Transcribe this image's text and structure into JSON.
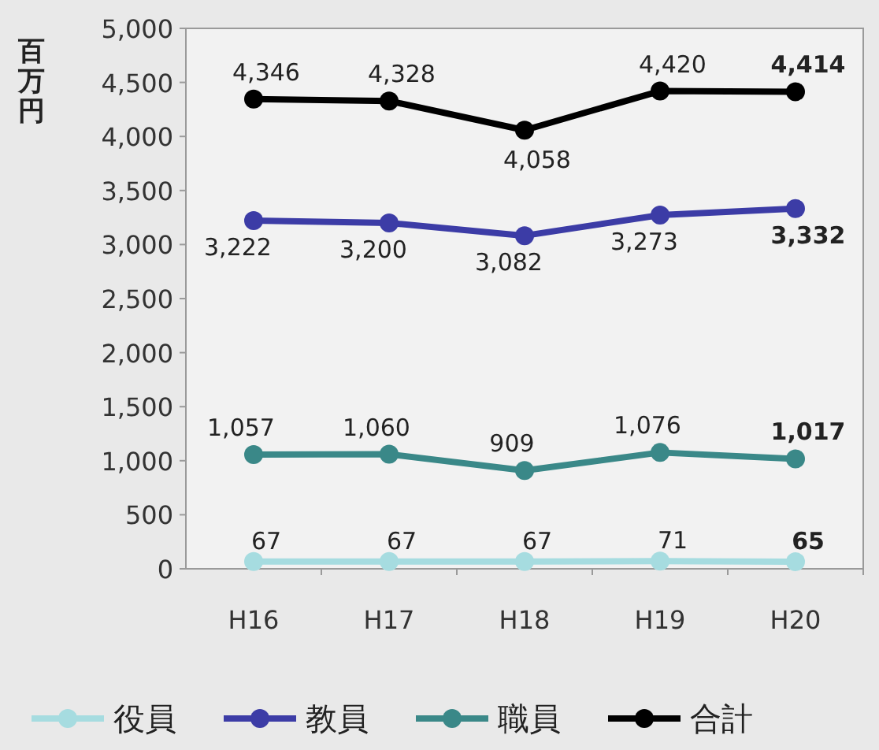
{
  "chart_data": {
    "type": "line",
    "ylabel": "百万円",
    "categories": [
      "H16",
      "H17",
      "H18",
      "H19",
      "H20"
    ],
    "ylim": [
      0,
      5000
    ],
    "yticks": [
      {
        "value": 0,
        "label": "0"
      },
      {
        "value": 500,
        "label": "500"
      },
      {
        "value": 1000,
        "label": "1,000"
      },
      {
        "value": 1500,
        "label": "1,500"
      },
      {
        "value": 2000,
        "label": "2,000"
      },
      {
        "value": 2500,
        "label": "2,500"
      },
      {
        "value": 3000,
        "label": "3,000"
      },
      {
        "value": 3500,
        "label": "3,500"
      },
      {
        "value": 4000,
        "label": "4,000"
      },
      {
        "value": 4500,
        "label": "4,500"
      },
      {
        "value": 5000,
        "label": "5,000"
      }
    ],
    "series": [
      {
        "name": "役員",
        "color": "#a6dce0",
        "values": [
          67,
          67,
          67,
          71,
          65
        ],
        "value_labels": [
          "67",
          "67",
          "67",
          "71",
          "**65**"
        ]
      },
      {
        "name": "教員",
        "color": "#3c3ca6",
        "values": [
          3222,
          3200,
          3082,
          3273,
          3332
        ],
        "value_labels": [
          "3,222",
          "3,200",
          "3,082",
          "3,273",
          "**3,332**"
        ]
      },
      {
        "name": "職員",
        "color": "#3a8888",
        "values": [
          1057,
          1060,
          909,
          1076,
          1017
        ],
        "value_labels": [
          "1,057",
          "1,060",
          "909",
          "1,076",
          "**1,017**"
        ]
      },
      {
        "name": "合計",
        "color": "#000000",
        "values": [
          4346,
          4328,
          4058,
          4420,
          4414
        ],
        "value_labels": [
          "4,346",
          "4,328",
          "4,058",
          "4,420",
          "**4,414**"
        ]
      }
    ],
    "marker": "circle",
    "line_style": "solid",
    "grid": false,
    "legend": "bottom"
  }
}
